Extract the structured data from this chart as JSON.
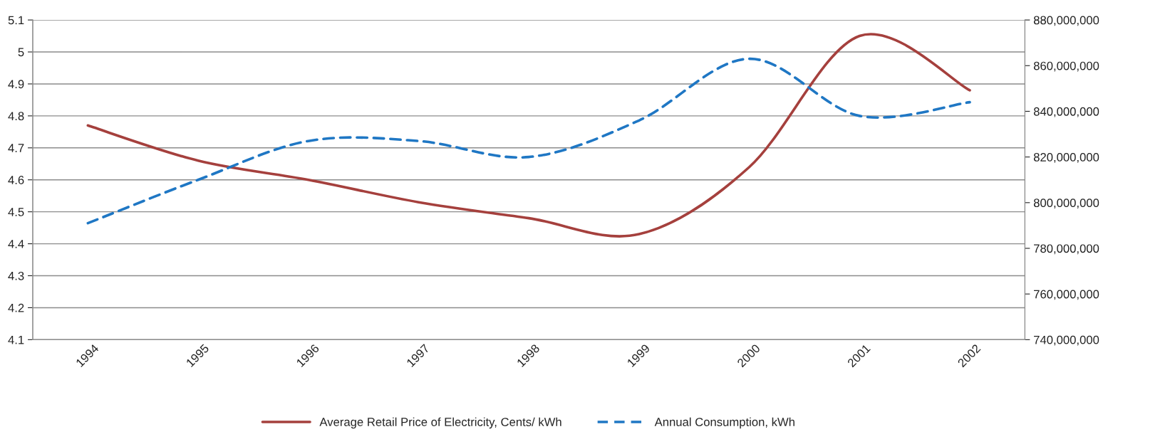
{
  "chart_data": {
    "type": "line",
    "categories": [
      "1994",
      "1995",
      "1996",
      "1997",
      "1998",
      "1999",
      "2000",
      "2001",
      "2002"
    ],
    "series": [
      {
        "name": "Average Retail Price of Electricity, Cents/ kWh",
        "color": "#a5403d",
        "line_style": "solid",
        "values": [
          4.77,
          4.66,
          4.6,
          4.53,
          4.48,
          4.43,
          4.64,
          5.05,
          4.88
        ]
      },
      {
        "name": "Annual Consumption, kWh",
        "color": "#1f77c4",
        "line_style": "dashed",
        "axis": "y2",
        "values": [
          791000000,
          810000000,
          827000000,
          827000000,
          820000000,
          836000000,
          863000000,
          838000000,
          844000000
        ]
      }
    ],
    "ylim": [
      4.1,
      5.1
    ],
    "yticks": [
      4.1,
      4.2,
      4.3,
      4.4,
      4.5,
      4.6,
      4.7,
      4.8,
      4.9,
      5,
      5.1
    ],
    "y2lim": [
      740000000,
      880000000
    ],
    "y2ticks": [
      {
        "value": 740000000,
        "label": "740,000,000"
      },
      {
        "value": 760000000,
        "label": "760,000,000"
      },
      {
        "value": 780000000,
        "label": "780,000,000"
      },
      {
        "value": 800000000,
        "label": "800,000,000"
      },
      {
        "value": 820000000,
        "label": "820,000,000"
      },
      {
        "value": 840000000,
        "label": "840,000,000"
      },
      {
        "value": 860000000,
        "label": "860,000,000"
      },
      {
        "value": 880000000,
        "label": "880,000,000"
      }
    ],
    "grid": "y",
    "legend": "bottom",
    "marker": "none"
  }
}
